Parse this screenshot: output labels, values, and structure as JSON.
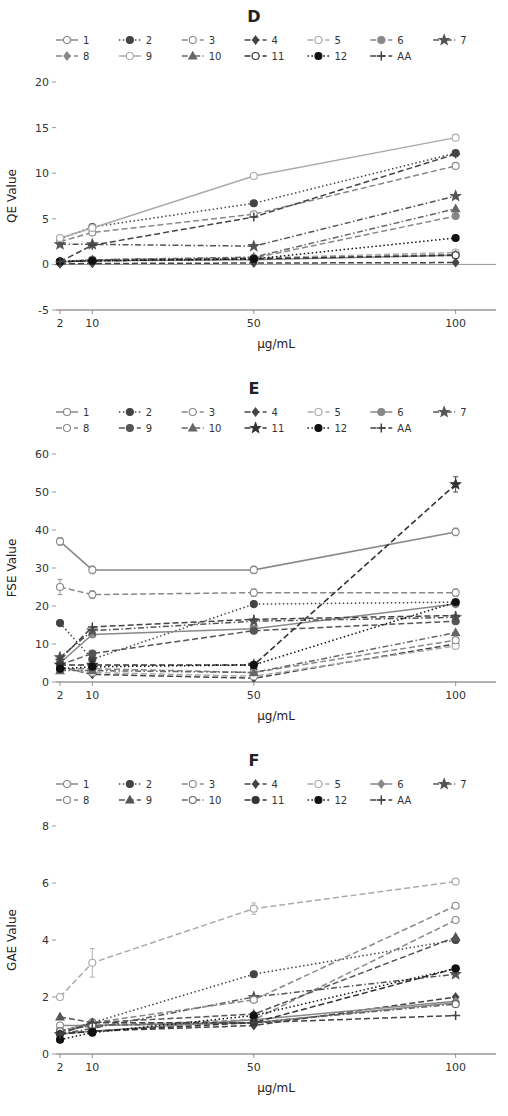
{
  "chart_data": [
    {
      "type": "line",
      "title": "D",
      "xlabel": "μg/mL",
      "ylabel": "QE Value",
      "x": [
        2,
        10,
        50,
        100
      ],
      "xlim": [
        1,
        110
      ],
      "xticks": [
        2,
        10,
        50,
        100
      ],
      "ylim": [
        -5,
        20
      ],
      "yticks": [
        -5,
        0,
        5,
        10,
        15,
        20
      ],
      "grid": false,
      "legend": "top",
      "series": [
        {
          "name": "1",
          "color": "#888888",
          "marker": "circle-open",
          "line_style": "solid",
          "values": [
            0.3,
            0.4,
            0.5,
            1.0
          ]
        },
        {
          "name": "2",
          "color": "#444444",
          "marker": "circle",
          "line_style": "dotted",
          "values": [
            2.8,
            4.1,
            6.7,
            12.2
          ]
        },
        {
          "name": "3",
          "color": "#888888",
          "marker": "circle-open",
          "line_style": "dashed",
          "values": [
            2.5,
            3.5,
            5.5,
            10.8
          ]
        },
        {
          "name": "4",
          "color": "#444444",
          "marker": "diamond",
          "line_style": "dashed",
          "values": [
            0.05,
            0.1,
            0.15,
            0.2
          ]
        },
        {
          "name": "5",
          "color": "#aaaaaa",
          "marker": "circle-open",
          "line_style": "dashed",
          "values": [
            0.3,
            0.5,
            0.7,
            1.3
          ]
        },
        {
          "name": "6",
          "color": "#888888",
          "marker": "circle",
          "line_style": "dashed",
          "values": [
            0.3,
            0.5,
            0.7,
            5.3
          ]
        },
        {
          "name": "7",
          "color": "#555555",
          "marker": "star",
          "line_style": "dashdot",
          "values": [
            2.2,
            2.2,
            2.0,
            7.5
          ]
        },
        {
          "name": "8",
          "color": "#888888",
          "marker": "diamond",
          "line_style": "dashed",
          "values": [
            0.3,
            0.4,
            0.6,
            1.1
          ]
        },
        {
          "name": "9",
          "color": "#aaaaaa",
          "marker": "circle-open",
          "line_style": "solid",
          "values": [
            2.9,
            4.0,
            9.7,
            13.9
          ]
        },
        {
          "name": "10",
          "color": "#666666",
          "marker": "triangle",
          "line_style": "dashdot",
          "values": [
            0.3,
            0.5,
            0.8,
            6.1
          ]
        },
        {
          "name": "11",
          "color": "#333333",
          "marker": "circle-open",
          "line_style": "dashed",
          "values": [
            0.3,
            0.4,
            0.6,
            1.0
          ]
        },
        {
          "name": "12",
          "color": "#111111",
          "marker": "circle",
          "line_style": "dotted",
          "values": [
            0.3,
            0.4,
            0.6,
            2.9
          ]
        },
        {
          "name": "AA",
          "color": "#444444",
          "marker": "plus",
          "line_style": "dashed",
          "values": [
            0.3,
            2.1,
            5.2,
            12.1
          ]
        }
      ]
    },
    {
      "type": "line",
      "title": "E",
      "xlabel": "μg/mL",
      "ylabel": "FSE Value",
      "x": [
        2,
        10,
        50,
        100
      ],
      "xlim": [
        1,
        110
      ],
      "xticks": [
        2,
        10,
        50,
        100
      ],
      "ylim": [
        0,
        60
      ],
      "yticks": [
        0,
        10,
        20,
        30,
        40,
        50,
        60
      ],
      "grid": false,
      "legend": "top",
      "series": [
        {
          "name": "1",
          "color": "#888888",
          "marker": "circle-open",
          "line_style": "solid",
          "values": [
            37.0,
            29.5,
            29.5,
            39.5
          ],
          "errors": [
            1.0,
            1.0,
            1.0,
            1.0
          ]
        },
        {
          "name": "2",
          "color": "#444444",
          "marker": "circle",
          "line_style": "dotted",
          "values": [
            15.5,
            6.0,
            20.5,
            21.0
          ]
        },
        {
          "name": "3",
          "color": "#888888",
          "marker": "circle-open",
          "line_style": "dashed",
          "values": [
            25.0,
            23.0,
            23.5,
            23.5
          ],
          "errors": [
            2.0,
            1.0,
            1.0,
            1.0
          ]
        },
        {
          "name": "4",
          "color": "#444444",
          "marker": "diamond",
          "line_style": "dashed",
          "values": [
            4.0,
            2.0,
            1.0,
            10.0
          ]
        },
        {
          "name": "5",
          "color": "#aaaaaa",
          "marker": "circle-open",
          "line_style": "dashed",
          "values": [
            3.5,
            2.5,
            1.5,
            9.5
          ]
        },
        {
          "name": "6",
          "color": "#888888",
          "marker": "circle",
          "line_style": "solid",
          "values": [
            5.0,
            12.5,
            14.0,
            20.5
          ]
        },
        {
          "name": "7",
          "color": "#555555",
          "marker": "star",
          "line_style": "dashdot",
          "values": [
            6.5,
            13.5,
            16.0,
            17.0
          ]
        },
        {
          "name": "8",
          "color": "#888888",
          "marker": "circle-open",
          "line_style": "dashed",
          "values": [
            3.5,
            3.5,
            2.5,
            11.0
          ]
        },
        {
          "name": "9",
          "color": "#555555",
          "marker": "circle",
          "line_style": "dashed",
          "values": [
            4.5,
            7.5,
            13.5,
            16.0
          ]
        },
        {
          "name": "10",
          "color": "#666666",
          "marker": "triangle",
          "line_style": "dashdot",
          "values": [
            3.0,
            3.0,
            2.5,
            13.0
          ]
        },
        {
          "name": "11",
          "color": "#333333",
          "marker": "star",
          "line_style": "dashed",
          "values": [
            4.5,
            4.5,
            4.5,
            52.0
          ],
          "errors": [
            0.5,
            0.5,
            0.5,
            2.0
          ]
        },
        {
          "name": "12",
          "color": "#111111",
          "marker": "circle",
          "line_style": "dotted",
          "values": [
            3.5,
            4.0,
            4.5,
            21.0
          ]
        },
        {
          "name": "AA",
          "color": "#444444",
          "marker": "plus",
          "line_style": "dashed",
          "values": [
            6.0,
            14.5,
            16.5,
            17.5
          ]
        }
      ]
    },
    {
      "type": "line",
      "title": "F",
      "xlabel": "μg/mL",
      "ylabel": "GAE Value",
      "x": [
        2,
        10,
        50,
        100
      ],
      "xlim": [
        1,
        110
      ],
      "xticks": [
        2,
        10,
        50,
        100
      ],
      "ylim": [
        0,
        8
      ],
      "yticks": [
        0,
        2,
        4,
        6,
        8
      ],
      "grid": false,
      "legend": "top",
      "series": [
        {
          "name": "1",
          "color": "#888888",
          "marker": "circle-open",
          "line_style": "solid",
          "values": [
            1.0,
            1.0,
            1.1,
            1.8
          ]
        },
        {
          "name": "2",
          "color": "#444444",
          "marker": "circle",
          "line_style": "dotted",
          "values": [
            0.8,
            1.1,
            2.8,
            4.0
          ]
        },
        {
          "name": "3",
          "color": "#888888",
          "marker": "circle-open",
          "line_style": "dashed",
          "values": [
            0.8,
            1.0,
            1.2,
            4.7
          ]
        },
        {
          "name": "4",
          "color": "#444444",
          "marker": "diamond",
          "line_style": "dashed",
          "values": [
            0.7,
            0.8,
            1.0,
            2.0
          ]
        },
        {
          "name": "5",
          "color": "#aaaaaa",
          "marker": "circle-open",
          "line_style": "dashed",
          "values": [
            2.0,
            3.2,
            5.1,
            6.05
          ],
          "errors": [
            0.1,
            0.5,
            0.2,
            0.1
          ]
        },
        {
          "name": "6",
          "color": "#888888",
          "marker": "diamond",
          "line_style": "solid",
          "values": [
            0.7,
            0.8,
            1.2,
            1.85
          ]
        },
        {
          "name": "7",
          "color": "#555555",
          "marker": "star",
          "line_style": "dashdot",
          "values": [
            0.7,
            0.9,
            2.0,
            2.8
          ]
        },
        {
          "name": "8",
          "color": "#888888",
          "marker": "circle-open",
          "line_style": "dashed",
          "values": [
            0.8,
            1.1,
            1.9,
            5.2
          ]
        },
        {
          "name": "9",
          "color": "#555555",
          "marker": "triangle",
          "line_style": "dashed",
          "values": [
            1.3,
            1.1,
            1.4,
            4.1
          ]
        },
        {
          "name": "10",
          "color": "#666666",
          "marker": "circle-open",
          "line_style": "dashdot",
          "values": [
            0.8,
            1.0,
            1.1,
            1.75
          ]
        },
        {
          "name": "11",
          "color": "#333333",
          "marker": "circle",
          "line_style": "dashed",
          "values": [
            0.7,
            0.8,
            1.1,
            3.0
          ]
        },
        {
          "name": "12",
          "color": "#111111",
          "marker": "circle",
          "line_style": "dotted",
          "values": [
            0.5,
            0.75,
            1.35,
            3.0
          ]
        },
        {
          "name": "AA",
          "color": "#444444",
          "marker": "plus",
          "line_style": "dashed",
          "values": [
            0.7,
            1.1,
            1.1,
            1.35
          ]
        }
      ]
    }
  ]
}
